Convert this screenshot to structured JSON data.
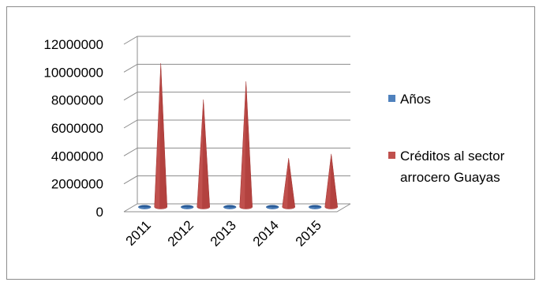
{
  "chart_data": {
    "type": "bar",
    "subtype": "3d-cone",
    "categories": [
      "2011",
      "2012",
      "2013",
      "2014",
      "2015"
    ],
    "series": [
      {
        "name": "Años",
        "values": [
          2011,
          2012,
          2013,
          2014,
          2015
        ],
        "color": "#4f81bd"
      },
      {
        "name": "Créditos al sector arrocero Guayas",
        "values": [
          10300000,
          7700000,
          9000000,
          3500000,
          3800000
        ],
        "color": "#c0504d"
      }
    ],
    "title": "",
    "xlabel": "",
    "ylabel": "",
    "ylim": [
      0,
      12000000
    ],
    "yticks": [
      "12000000",
      "10000000",
      "8000000",
      "6000000",
      "4000000",
      "2000000",
      "0"
    ],
    "grid": true,
    "legend_position": "right",
    "legend": [
      {
        "lines": [
          "Años"
        ]
      },
      {
        "lines": [
          "Créditos al sector",
          "arrocero Guayas"
        ]
      }
    ]
  }
}
